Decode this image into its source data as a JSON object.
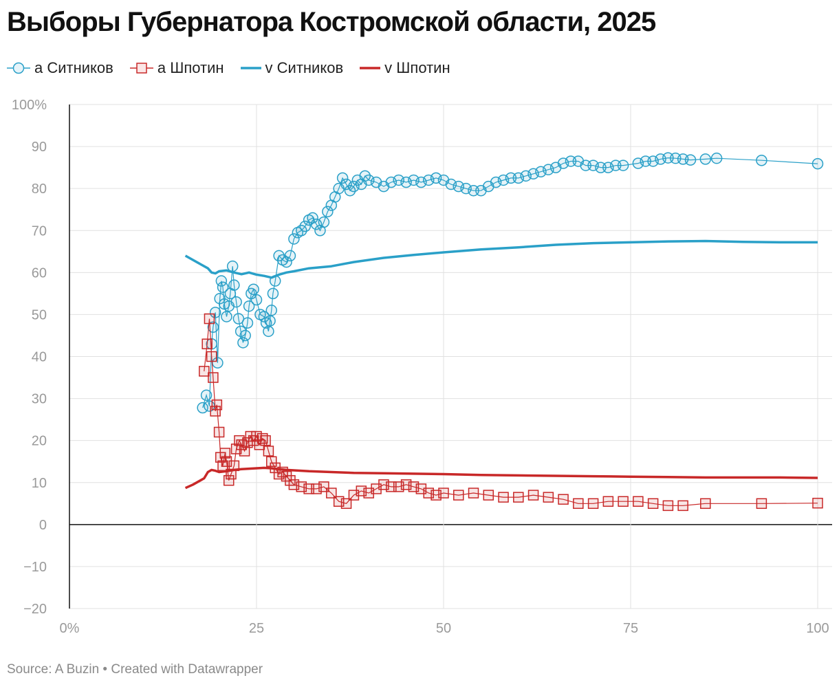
{
  "title": "Выборы Губернатора Костромской области, 2025",
  "footer": "Source: A Buzin • Created with Datawrapper",
  "colors": {
    "sitnikov": "#2aa0c8",
    "shpotin": "#c82828",
    "grid": "#e0e0e0",
    "axis": "#111111"
  },
  "legend": [
    {
      "label": "а Ситников",
      "marker": "circle",
      "color": "#2aa0c8"
    },
    {
      "label": "а Шпотин",
      "marker": "square",
      "color": "#c82828"
    },
    {
      "label": "v Ситников",
      "marker": "line",
      "color": "#2aa0c8"
    },
    {
      "label": "v Шпотин",
      "marker": "line",
      "color": "#c82828"
    }
  ],
  "chart_data": {
    "type": "line",
    "title": "Выборы Губернатора Костромской области, 2025",
    "xlabel": "",
    "ylabel": "",
    "xlim": [
      0,
      100
    ],
    "ylim": [
      -20,
      100
    ],
    "x_ticks": [
      0,
      25,
      50,
      75,
      100
    ],
    "x_tick_labels": [
      "0%",
      "25",
      "50",
      "75",
      "100"
    ],
    "y_ticks": [
      100,
      90,
      80,
      70,
      60,
      50,
      40,
      30,
      20,
      10,
      0,
      -10,
      -20
    ],
    "y_tick_labels": [
      "100%",
      "90",
      "80",
      "70",
      "60",
      "50",
      "40",
      "30",
      "20",
      "10",
      "0",
      "−10",
      "−20"
    ],
    "grid": true,
    "legend_position": "top-left",
    "series": [
      {
        "name": "а Ситников",
        "style": "markers-circle",
        "color": "#2aa0c8",
        "x": [
          17.8,
          18.3,
          18.7,
          19.0,
          19.2,
          19.5,
          19.8,
          20.1,
          20.3,
          20.5,
          20.7,
          21.0,
          21.3,
          21.5,
          21.8,
          22.0,
          22.3,
          22.6,
          22.9,
          23.2,
          23.5,
          23.8,
          24.0,
          24.3,
          24.6,
          25.0,
          25.5,
          26.0,
          26.3,
          26.6,
          26.8,
          27.0,
          27.2,
          27.5,
          28.0,
          28.5,
          29.0,
          29.5,
          30.0,
          30.5,
          31.0,
          31.5,
          32.0,
          32.5,
          33.0,
          33.5,
          34.0,
          34.5,
          35.0,
          35.5,
          36.0,
          36.5,
          37.0,
          37.5,
          38.0,
          38.5,
          39.0,
          39.5,
          40.0,
          41.0,
          42.0,
          43.0,
          44.0,
          45.0,
          46.0,
          47.0,
          48.0,
          49.0,
          50.0,
          51.0,
          52.0,
          53.0,
          54.0,
          55.0,
          56.0,
          57.0,
          58.0,
          59.0,
          60.0,
          61.0,
          62.0,
          63.0,
          64.0,
          65.0,
          66.0,
          67.0,
          68.0,
          69.0,
          70.0,
          71.0,
          72.0,
          73.0,
          74.0,
          76.0,
          77.0,
          78.0,
          79.0,
          80.0,
          81.0,
          82.0,
          83.0,
          85.0,
          86.5,
          92.5,
          100.0
        ],
        "y": [
          27.8,
          30.8,
          28.2,
          43.0,
          47.0,
          50.5,
          38.5,
          53.8,
          58.0,
          56.5,
          52.5,
          49.5,
          52.0,
          55.0,
          61.5,
          57.0,
          53.0,
          49.0,
          46.0,
          43.3,
          45.0,
          48.0,
          52.0,
          55.0,
          56.0,
          53.5,
          50.0,
          49.5,
          48.0,
          46.0,
          48.5,
          51.0,
          55.0,
          58.0,
          64.0,
          63.0,
          62.5,
          64.0,
          68.0,
          69.5,
          70.0,
          71.0,
          72.5,
          73.0,
          71.5,
          70.0,
          72.0,
          74.5,
          76.0,
          78.0,
          80.0,
          82.5,
          81.0,
          79.5,
          80.5,
          82.0,
          81.0,
          83.0,
          82.0,
          81.5,
          80.5,
          81.5,
          82.0,
          81.5,
          82.0,
          81.5,
          82.0,
          82.5,
          82.0,
          81.0,
          80.5,
          80.0,
          79.5,
          79.5,
          80.5,
          81.5,
          82.0,
          82.5,
          82.5,
          83.0,
          83.5,
          84.0,
          84.5,
          85.0,
          86.0,
          86.5,
          86.5,
          85.5,
          85.5,
          85.0,
          85.0,
          85.5,
          85.5,
          86.0,
          86.5,
          86.5,
          87.0,
          87.3,
          87.2,
          87.0,
          86.8,
          87.0,
          87.2,
          86.7,
          85.9
        ]
      },
      {
        "name": "а Шпотин",
        "style": "markers-square",
        "color": "#c82828",
        "x": [
          18.0,
          18.4,
          18.7,
          19.0,
          19.2,
          19.5,
          19.7,
          20.0,
          20.2,
          20.5,
          20.8,
          21.0,
          21.3,
          21.6,
          22.0,
          22.3,
          22.7,
          23.0,
          23.4,
          23.8,
          24.2,
          24.6,
          25.0,
          25.4,
          25.8,
          26.2,
          26.6,
          27.0,
          27.5,
          28.0,
          28.5,
          29.0,
          29.5,
          30.0,
          31.0,
          32.0,
          33.0,
          34.0,
          35.0,
          36.0,
          37.0,
          38.0,
          39.0,
          40.0,
          41.0,
          42.0,
          43.0,
          44.0,
          45.0,
          46.0,
          47.0,
          48.0,
          49.0,
          50.0,
          52.0,
          54.0,
          56.0,
          58.0,
          60.0,
          62.0,
          64.0,
          66.0,
          68.0,
          70.0,
          72.0,
          74.0,
          76.0,
          78.0,
          80.0,
          82.0,
          85.0,
          92.5,
          100.0
        ],
        "y": [
          36.5,
          43.0,
          49.0,
          40.0,
          35.0,
          27.0,
          28.5,
          22.0,
          16.0,
          14.0,
          17.0,
          15.0,
          10.5,
          12.0,
          14.0,
          18.0,
          20.0,
          19.0,
          17.5,
          19.5,
          21.0,
          20.0,
          21.0,
          19.0,
          20.5,
          20.0,
          17.5,
          15.0,
          13.5,
          12.0,
          12.5,
          11.5,
          10.5,
          9.5,
          9.0,
          8.5,
          8.5,
          9.0,
          7.5,
          5.5,
          5.0,
          7.0,
          8.0,
          7.5,
          8.5,
          9.5,
          9.0,
          9.0,
          9.5,
          9.0,
          8.5,
          7.5,
          7.0,
          7.5,
          7.0,
          7.5,
          7.0,
          6.5,
          6.5,
          7.0,
          6.5,
          6.0,
          5.0,
          5.0,
          5.5,
          5.5,
          5.5,
          5.0,
          4.5,
          4.5,
          5.0,
          5.0,
          5.1
        ]
      },
      {
        "name": "v Ситников",
        "style": "line",
        "color": "#2aa0c8",
        "x": [
          15.5,
          16.5,
          17.5,
          18.5,
          19.0,
          19.5,
          20.0,
          21.0,
          22.0,
          23.0,
          24.0,
          25.0,
          26.0,
          27.0,
          28.0,
          29.0,
          30.0,
          32.0,
          35.0,
          38.0,
          42.0,
          46.0,
          50.0,
          55.0,
          60.0,
          65.0,
          70.0,
          75.0,
          80.0,
          85.0,
          90.0,
          95.0,
          100.0
        ],
        "y": [
          64.0,
          63.0,
          62.0,
          61.0,
          60.0,
          59.8,
          60.3,
          60.5,
          60.0,
          59.6,
          60.0,
          59.5,
          59.2,
          58.8,
          59.5,
          60.0,
          60.3,
          61.0,
          61.5,
          62.5,
          63.5,
          64.2,
          64.8,
          65.5,
          66.0,
          66.6,
          67.0,
          67.2,
          67.4,
          67.5,
          67.3,
          67.2,
          67.2
        ]
      },
      {
        "name": "v Шпотин",
        "style": "line",
        "color": "#c82828",
        "x": [
          15.5,
          16.5,
          17.5,
          18.0,
          18.5,
          19.0,
          19.5,
          20.0,
          21.0,
          22.0,
          23.0,
          24.0,
          25.0,
          26.0,
          27.0,
          28.0,
          29.0,
          30.0,
          32.0,
          35.0,
          38.0,
          42.0,
          46.0,
          50.0,
          55.0,
          60.0,
          65.0,
          70.0,
          75.0,
          80.0,
          85.0,
          90.0,
          95.0,
          100.0
        ],
        "y": [
          8.7,
          9.5,
          10.5,
          11.0,
          12.5,
          13.0,
          12.8,
          12.5,
          12.7,
          13.0,
          13.2,
          13.3,
          13.4,
          13.5,
          13.4,
          13.2,
          13.0,
          12.9,
          12.7,
          12.5,
          12.3,
          12.2,
          12.1,
          12.0,
          11.8,
          11.7,
          11.6,
          11.5,
          11.4,
          11.3,
          11.2,
          11.2,
          11.2,
          11.1
        ]
      }
    ]
  }
}
